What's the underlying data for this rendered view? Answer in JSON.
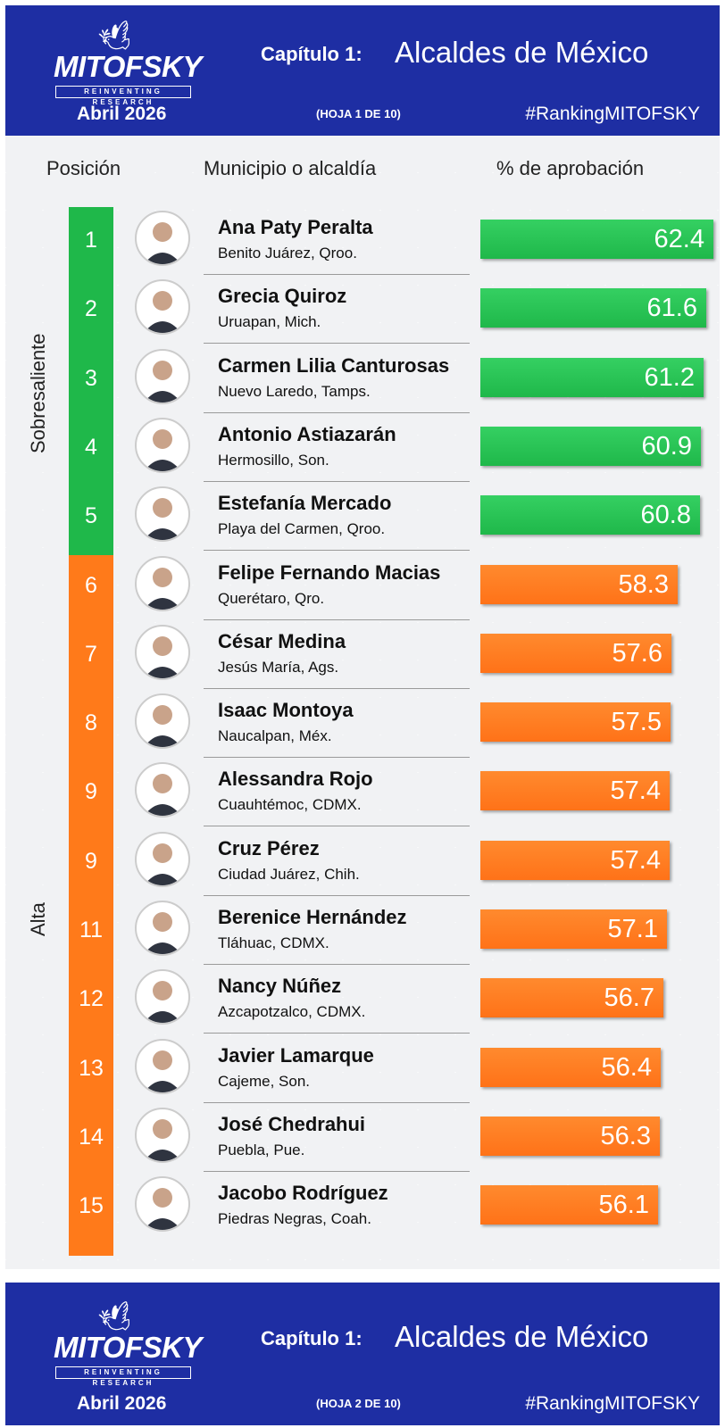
{
  "header": {
    "logo_text": "MITOFSKY",
    "logo_sub": "REINVENTING RESEARCH",
    "date": "Abril  2026",
    "chapter": "Capítulo 1:",
    "title": "Alcaldes de México",
    "sheet": "(HOJA 1 DE 10)",
    "hashtag": "#RankingMITOFSKY"
  },
  "header2": {
    "logo_text": "MITOFSKY",
    "logo_sub": "REINVENTING RESEARCH",
    "date": "Abril  2026",
    "chapter": "Capítulo 1:",
    "title": "Alcaldes de México",
    "sheet": "(HOJA 2 DE 10)",
    "hashtag": "#RankingMITOFSKY"
  },
  "columns": {
    "position": "Posición",
    "municipality": "Municipio o alcaldía",
    "approval": "% de aprobación"
  },
  "groups": {
    "top": "Sobresaliente",
    "high": "Alta"
  },
  "colors": {
    "green": "#1fb84a",
    "orange": "#ff7a1a",
    "header_blue": "#1e2ea3"
  },
  "chart_data": {
    "type": "bar",
    "orientation": "horizontal",
    "xlabel": "% de aprobación",
    "rows": [
      {
        "rank": "1",
        "name": "Ana Paty Peralta",
        "place": "Benito Juárez, Qroo.",
        "value": 62.4,
        "group": "Sobresaliente"
      },
      {
        "rank": "2",
        "name": "Grecia Quiroz",
        "place": "Uruapan, Mich.",
        "value": 61.6,
        "group": "Sobresaliente"
      },
      {
        "rank": "3",
        "name": "Carmen Lilia Canturosas",
        "place": "Nuevo Laredo, Tamps.",
        "value": 61.2,
        "group": "Sobresaliente"
      },
      {
        "rank": "4",
        "name": "Antonio Astiazarán",
        "place": "Hermosillo, Son.",
        "value": 60.9,
        "group": "Sobresaliente"
      },
      {
        "rank": "5",
        "name": "Estefanía Mercado",
        "place": "Playa del Carmen, Qroo.",
        "value": 60.8,
        "group": "Sobresaliente"
      },
      {
        "rank": "6",
        "name": "Felipe Fernando Macias",
        "place": "Querétaro, Qro.",
        "value": 58.3,
        "group": "Alta"
      },
      {
        "rank": "7",
        "name": "César Medina",
        "place": "Jesús María, Ags.",
        "value": 57.6,
        "group": "Alta"
      },
      {
        "rank": "8",
        "name": "Isaac Montoya",
        "place": "Naucalpan, Méx.",
        "value": 57.5,
        "group": "Alta"
      },
      {
        "rank": "9",
        "name": "Alessandra Rojo",
        "place": "Cuauhtémoc, CDMX.",
        "value": 57.4,
        "group": "Alta"
      },
      {
        "rank": "9",
        "name": "Cruz Pérez",
        "place": "Ciudad Juárez, Chih.",
        "value": 57.4,
        "group": "Alta"
      },
      {
        "rank": "11",
        "name": "Berenice Hernández",
        "place": "Tláhuac, CDMX.",
        "value": 57.1,
        "group": "Alta"
      },
      {
        "rank": "12",
        "name": "Nancy Núñez",
        "place": "Azcapotzalco, CDMX.",
        "value": 56.7,
        "group": "Alta"
      },
      {
        "rank": "13",
        "name": "Javier Lamarque",
        "place": "Cajeme, Son.",
        "value": 56.4,
        "group": "Alta"
      },
      {
        "rank": "14",
        "name": "José Chedrahui",
        "place": "Puebla, Pue.",
        "value": 56.3,
        "group": "Alta"
      },
      {
        "rank": "15",
        "name": "Jacobo Rodríguez",
        "place": "Piedras Negras, Coah.",
        "value": 56.1,
        "group": "Alta"
      }
    ]
  }
}
